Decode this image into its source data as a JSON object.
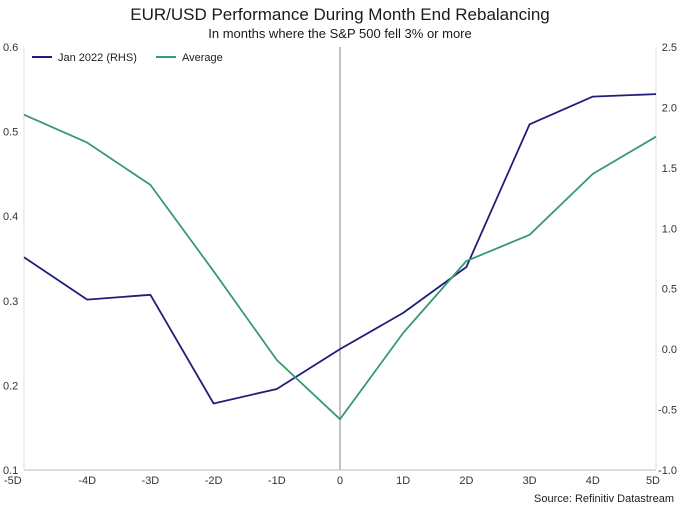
{
  "chart_data": {
    "type": "line",
    "title": "EUR/USD Performance During Month End Rebalancing",
    "subtitle": "In months where the S&P 500 fell 3% or more",
    "source": "Source: Refinitiv Datastream",
    "categories": [
      "-5D",
      "-4D",
      "-3D",
      "-2D",
      "-1D",
      "0",
      "1D",
      "2D",
      "3D",
      "4D",
      "5D"
    ],
    "y_left": {
      "ticks": [
        "0.6",
        "0.5",
        "0.4",
        "0.3",
        "0.2",
        "0.1"
      ],
      "range": [
        0.1,
        0.6
      ]
    },
    "y_right": {
      "ticks": [
        "2.5",
        "2.0",
        "1.5",
        "1.0",
        "0.5",
        "0.0",
        "-0.5",
        "-1.0"
      ],
      "range": [
        -1.0,
        2.5
      ]
    },
    "series": [
      {
        "name": "Jan 2022 (RHS)",
        "axis": "right",
        "color": "#1f1f7a",
        "values": [
          0.76,
          0.41,
          0.45,
          -0.45,
          -0.33,
          0.0,
          0.3,
          0.68,
          1.86,
          2.09,
          2.11
        ]
      },
      {
        "name": "Average",
        "axis": "left",
        "color": "#3a9a6e",
        "values": [
          0.52,
          0.487,
          0.437,
          0.335,
          0.23,
          0.16,
          0.262,
          0.347,
          0.378,
          0.45,
          0.494
        ]
      }
    ],
    "zero_line": {
      "category": "0",
      "color": "#999999"
    },
    "grid": false,
    "legend_position": "top-left"
  }
}
